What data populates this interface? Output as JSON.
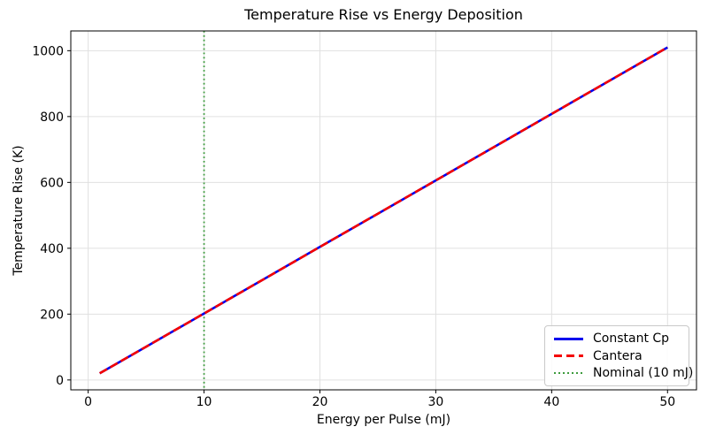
{
  "colors": {
    "constant_cp": "#0000ee",
    "cantera": "#f40000",
    "nominal": "#3d9c3d",
    "grid": "#e0e0e0",
    "axis": "#000000",
    "text": "#000000",
    "legend_border": "#c9c9c9"
  },
  "chart_data": {
    "type": "line",
    "title": "Temperature Rise vs Energy Deposition",
    "xlabel": "Energy per Pulse (mJ)",
    "ylabel": "Temperature Rise (K)",
    "xlim": [
      -1.5,
      52.5
    ],
    "ylim": [
      -30,
      1060
    ],
    "xticks": [
      0,
      10,
      20,
      30,
      40,
      50
    ],
    "yticks": [
      0,
      200,
      400,
      600,
      800,
      1000
    ],
    "grid": true,
    "legend_position": "lower right",
    "x": [
      1,
      5,
      10,
      15,
      20,
      25,
      30,
      35,
      40,
      45,
      50
    ],
    "series": [
      {
        "name": "Constant Cp",
        "style": "solid",
        "color": "#0000ee",
        "values": [
          20.2,
          101,
          202,
          303,
          404,
          505,
          606,
          707,
          808,
          909,
          1010
        ]
      },
      {
        "name": "Cantera",
        "style": "dashed",
        "color": "#f40000",
        "values": [
          20.2,
          101,
          202,
          303,
          404,
          505,
          606,
          707,
          808,
          909,
          1010
        ]
      }
    ],
    "vline": {
      "x": 10,
      "label": "Nominal (10 mJ)",
      "style": "dotted",
      "color": "#3d9c3d"
    }
  }
}
